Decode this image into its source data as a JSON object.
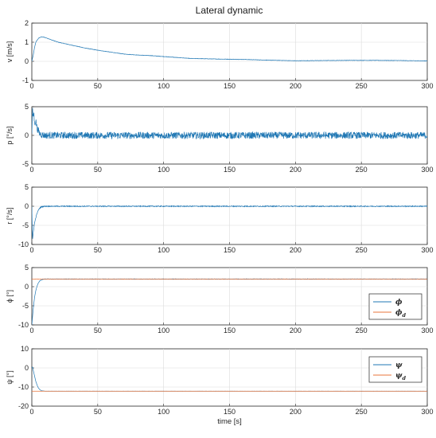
{
  "colors": {
    "blue": "#1f77b4",
    "orange": "#e8743b"
  },
  "chart_data": [
    {
      "type": "line",
      "title": "Lateral dynamic",
      "ylabel": "v [m/s]",
      "xlabel": "",
      "xlim": [
        0,
        300
      ],
      "ylim": [
        -1,
        2
      ],
      "xticks": [
        0,
        50,
        100,
        150,
        200,
        250,
        300
      ],
      "yticks": [
        -1,
        0,
        1,
        2
      ],
      "grid": true,
      "series": [
        {
          "color": "#1f77b4",
          "noise": 0.01,
          "x": [
            0,
            1,
            2,
            3,
            5,
            7,
            9,
            12,
            15,
            20,
            30,
            40,
            50,
            60,
            70,
            80,
            90,
            100,
            120,
            140,
            160,
            180,
            200,
            220,
            240,
            260,
            280,
            300
          ],
          "y": [
            0,
            0.3,
            0.7,
            1.0,
            1.2,
            1.28,
            1.27,
            1.2,
            1.12,
            1.0,
            0.85,
            0.7,
            0.58,
            0.48,
            0.38,
            0.33,
            0.3,
            0.25,
            0.15,
            0.12,
            0.1,
            0.06,
            0.03,
            0.04,
            0.05,
            0.05,
            0.04,
            0.02
          ]
        }
      ]
    },
    {
      "type": "line",
      "ylabel": "p [°/s]",
      "xlim": [
        0,
        300
      ],
      "ylim": [
        -5,
        5
      ],
      "xticks": [
        0,
        50,
        100,
        150,
        200,
        250,
        300
      ],
      "yticks": [
        -5,
        0,
        5
      ],
      "grid": true,
      "series": [
        {
          "color": "#1f77b4",
          "noise": 0.6,
          "x": [
            0,
            0.5,
            1,
            1.5,
            2,
            3,
            4,
            5,
            6,
            8,
            10,
            300
          ],
          "y": [
            0,
            4.5,
            3.0,
            4.2,
            2.0,
            2.6,
            1.2,
            0.8,
            0.3,
            0.1,
            0,
            0
          ]
        }
      ]
    },
    {
      "type": "line",
      "ylabel": "r [°/s]",
      "xlim": [
        0,
        300
      ],
      "ylim": [
        -10,
        5
      ],
      "xticks": [
        0,
        50,
        100,
        150,
        200,
        250,
        300
      ],
      "yticks": [
        -10,
        -5,
        0,
        5
      ],
      "grid": true,
      "series": [
        {
          "color": "#1f77b4",
          "noise": 0.12,
          "x": [
            0,
            0.5,
            1,
            2,
            3,
            4,
            5,
            6,
            7,
            8,
            10,
            300
          ],
          "y": [
            0,
            -9,
            -7,
            -4.5,
            -3,
            -1.8,
            -1,
            -0.5,
            -0.2,
            -0.1,
            0,
            0
          ]
        }
      ]
    },
    {
      "type": "line",
      "ylabel": "ϕ [°]",
      "xlim": [
        0,
        300
      ],
      "ylim": [
        -10,
        5
      ],
      "xticks": [
        0,
        50,
        100,
        150,
        200,
        250,
        300
      ],
      "yticks": [
        -10,
        -5,
        0,
        5
      ],
      "grid": true,
      "legend": "lower-right",
      "series": [
        {
          "name": "ϕ",
          "sub": "",
          "color": "#1f77b4",
          "noise": 0.06,
          "x": [
            0,
            0.5,
            1,
            2,
            3,
            4,
            5,
            6,
            8,
            10,
            12,
            300
          ],
          "y": [
            -10,
            -8,
            -6,
            -3,
            -1,
            0.2,
            1.0,
            1.5,
            1.9,
            2.0,
            2.0,
            2.0
          ]
        },
        {
          "name": "ϕ",
          "sub": "d",
          "color": "#e8743b",
          "noise": 0.03,
          "x": [
            0,
            300
          ],
          "y": [
            2,
            2
          ]
        }
      ]
    },
    {
      "type": "line",
      "ylabel": "ψ [°]",
      "xlabel": "time [s]",
      "xlim": [
        0,
        300
      ],
      "ylim": [
        -20,
        10
      ],
      "xticks": [
        0,
        50,
        100,
        150,
        200,
        250,
        300
      ],
      "yticks": [
        -20,
        -10,
        0,
        10
      ],
      "grid": true,
      "legend": "upper-right",
      "series": [
        {
          "name": "ψ",
          "sub": "",
          "color": "#1f77b4",
          "noise": 0.02,
          "x": [
            0,
            0.5,
            1,
            2,
            3,
            4,
            5,
            6,
            7,
            8,
            10,
            12,
            300
          ],
          "y": [
            0,
            0.5,
            -1,
            -4,
            -7,
            -9,
            -10.5,
            -11.3,
            -11.8,
            -12,
            -12.2,
            -12.2,
            -12.2
          ]
        },
        {
          "name": "ψ",
          "sub": "d",
          "color": "#e8743b",
          "noise": 0.0,
          "x": [
            0,
            300
          ],
          "y": [
            -12.2,
            -12.2
          ]
        }
      ]
    }
  ]
}
